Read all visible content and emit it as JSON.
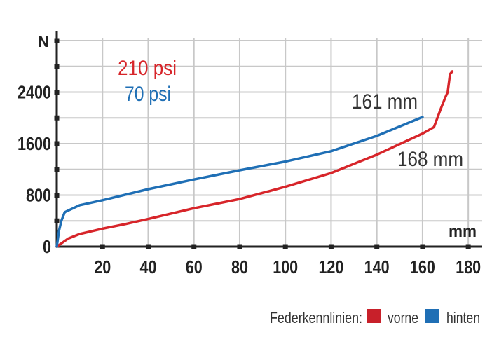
{
  "chart_data": {
    "type": "line",
    "title": "",
    "xlabel": "mm",
    "ylabel": "N",
    "xlim": [
      0,
      185
    ],
    "ylim": [
      0,
      3200
    ],
    "grid": true,
    "x_ticks": [
      20,
      40,
      60,
      80,
      100,
      120,
      140,
      160,
      180
    ],
    "x_grid_step": 20,
    "y_ticks": [
      0,
      800,
      1600,
      2400
    ],
    "y_grid_step": 400,
    "series": [
      {
        "name": "vorne",
        "pressure_label": "210 psi",
        "end_label": "168 mm",
        "color": "#d7252a",
        "points": [
          [
            0,
            0
          ],
          [
            5,
            125
          ],
          [
            10,
            196
          ],
          [
            20,
            279
          ],
          [
            30,
            350
          ],
          [
            40,
            429
          ],
          [
            60,
            596
          ],
          [
            80,
            739
          ],
          [
            100,
            929
          ],
          [
            120,
            1143
          ],
          [
            140,
            1429
          ],
          [
            160,
            1757
          ],
          [
            165,
            1857
          ],
          [
            168,
            2143
          ],
          [
            170,
            2321
          ],
          [
            171,
            2400
          ],
          [
            172,
            2679
          ],
          [
            173,
            2721
          ]
        ]
      },
      {
        "name": "hinten",
        "pressure_label": "70 psi",
        "end_label": "161 mm",
        "color": "#1f6fb5",
        "points": [
          [
            0,
            0
          ],
          [
            1,
            250
          ],
          [
            2,
            400
          ],
          [
            3.5,
            536
          ],
          [
            10,
            643
          ],
          [
            20,
            721
          ],
          [
            40,
            893
          ],
          [
            60,
            1043
          ],
          [
            80,
            1186
          ],
          [
            100,
            1321
          ],
          [
            120,
            1482
          ],
          [
            140,
            1721
          ],
          [
            160,
            2014
          ]
        ]
      }
    ],
    "legend": {
      "title": "Federkennlinien:",
      "placement": "bottom-right",
      "entries": [
        "vorne",
        "hinten"
      ]
    }
  }
}
